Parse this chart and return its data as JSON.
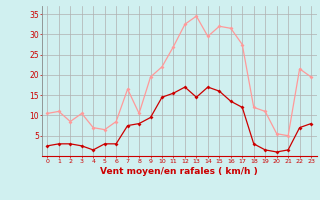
{
  "x": [
    0,
    1,
    2,
    3,
    4,
    5,
    6,
    7,
    8,
    9,
    10,
    11,
    12,
    13,
    14,
    15,
    16,
    17,
    18,
    19,
    20,
    21,
    22,
    23
  ],
  "wind_avg": [
    2.5,
    3.0,
    3.0,
    2.5,
    1.5,
    3.0,
    3.0,
    7.5,
    8.0,
    9.5,
    14.5,
    15.5,
    17.0,
    14.5,
    17.0,
    16.0,
    13.5,
    12.0,
    3.0,
    1.5,
    1.0,
    1.5,
    7.0,
    8.0
  ],
  "wind_gust": [
    10.5,
    11.0,
    8.5,
    10.5,
    7.0,
    6.5,
    8.5,
    16.5,
    10.5,
    19.5,
    22.0,
    27.0,
    32.5,
    34.5,
    29.5,
    32.0,
    31.5,
    27.5,
    12.0,
    11.0,
    5.5,
    5.0,
    21.5,
    19.5
  ],
  "avg_color": "#cc0000",
  "gust_color": "#ff9999",
  "bg_color": "#d0f0f0",
  "grid_color": "#b0b0b0",
  "xlabel": "Vent moyen/en rafales ( km/h )",
  "xlabel_color": "#cc0000",
  "tick_color": "#cc0000",
  "ylim": [
    0,
    37
  ],
  "yticks": [
    5,
    10,
    15,
    20,
    25,
    30,
    35
  ],
  "xlim": [
    -0.5,
    23.5
  ]
}
